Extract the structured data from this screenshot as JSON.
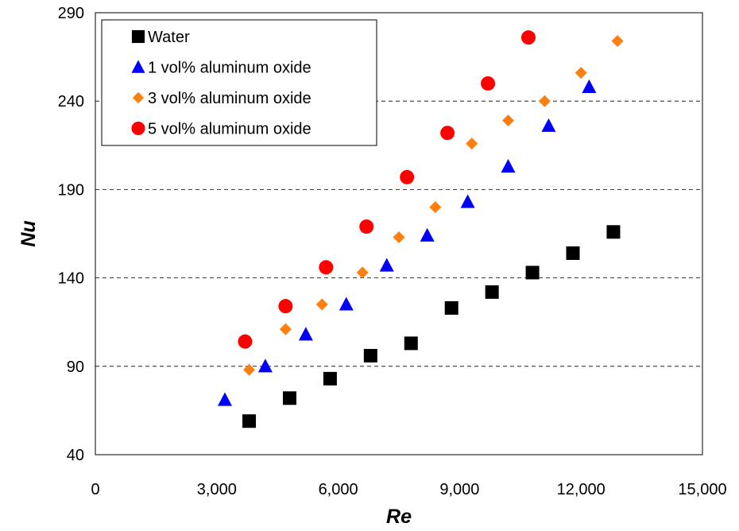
{
  "chart_data": {
    "type": "scatter",
    "xlabel": "Re",
    "ylabel": "Nu",
    "xlim": [
      0,
      15000
    ],
    "ylim": [
      40,
      290
    ],
    "xticks": [
      0,
      3000,
      6000,
      9000,
      12000,
      15000
    ],
    "xtick_labels": [
      "0",
      "3,000",
      "6,000",
      "9,000",
      "12,000",
      "15,000"
    ],
    "yticks": [
      40,
      90,
      140,
      190,
      240,
      290
    ],
    "ytick_labels": [
      "40",
      "90",
      "140",
      "190",
      "240",
      "290"
    ],
    "grid": "horizontal dashed",
    "legend_position": "top-left",
    "series": [
      {
        "name": "Water",
        "marker": "square",
        "color": "#000000",
        "points": [
          [
            3800,
            59
          ],
          [
            4800,
            72
          ],
          [
            5800,
            83
          ],
          [
            6800,
            96
          ],
          [
            7800,
            103
          ],
          [
            8800,
            123
          ],
          [
            9800,
            132
          ],
          [
            10800,
            143
          ],
          [
            11800,
            154
          ],
          [
            12800,
            166
          ]
        ]
      },
      {
        "name": "1 vol% aluminum oxide",
        "marker": "triangle",
        "color": "#0000FF",
        "points": [
          [
            3200,
            71
          ],
          [
            4200,
            90
          ],
          [
            5200,
            108
          ],
          [
            6200,
            125
          ],
          [
            7200,
            147
          ],
          [
            8200,
            164
          ],
          [
            9200,
            183
          ],
          [
            10200,
            203
          ],
          [
            11200,
            226
          ],
          [
            12200,
            248
          ]
        ]
      },
      {
        "name": "3 vol% aluminum oxide",
        "marker": "diamond",
        "color": "#FF7F0E",
        "points": [
          [
            3800,
            88
          ],
          [
            4700,
            111
          ],
          [
            5600,
            125
          ],
          [
            6600,
            143
          ],
          [
            7500,
            163
          ],
          [
            8400,
            180
          ],
          [
            9300,
            216
          ],
          [
            10200,
            229
          ],
          [
            11100,
            240
          ],
          [
            12000,
            256
          ],
          [
            12900,
            274
          ]
        ]
      },
      {
        "name": "5 vol% aluminum oxide",
        "marker": "circle",
        "color": "#FF0000",
        "points": [
          [
            3700,
            104
          ],
          [
            4700,
            124
          ],
          [
            5700,
            146
          ],
          [
            6700,
            169
          ],
          [
            7700,
            197
          ],
          [
            8700,
            222
          ],
          [
            9700,
            250
          ],
          [
            10700,
            276
          ]
        ]
      }
    ]
  }
}
